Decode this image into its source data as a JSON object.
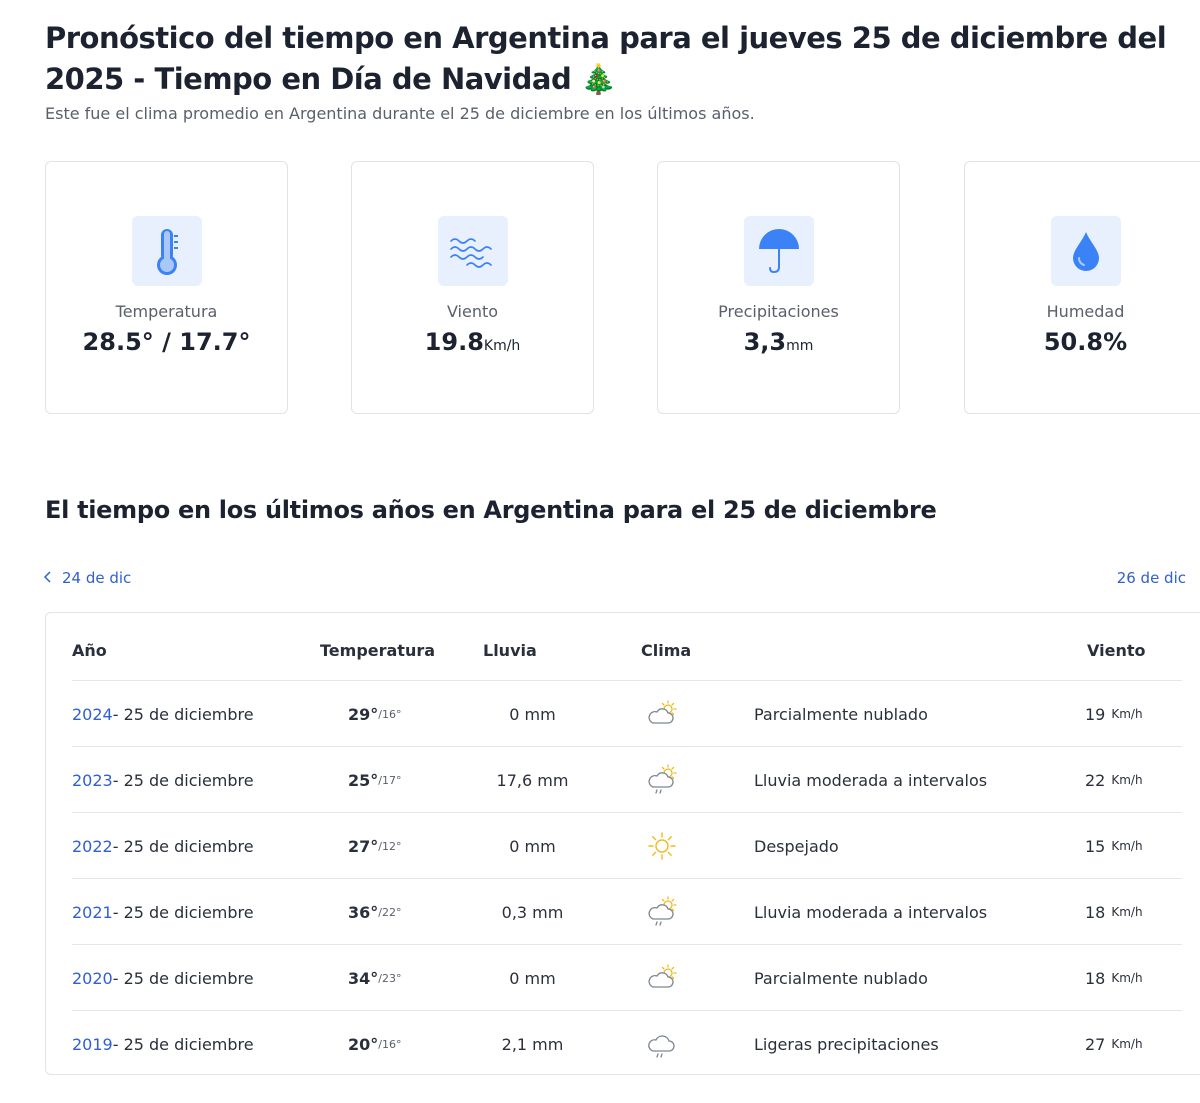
{
  "header": {
    "title": "Pronóstico del tiempo en Argentina para el jueves 25 de diciembre del 2025 - Tiempo en Día de Navidad 🎄",
    "subtitle": "Este fue el clima promedio en Argentina durante el 25 de diciembre en los últimos años."
  },
  "cards": [
    {
      "label": "Temperatura",
      "value": "28.5° / 17.7°",
      "unit": "",
      "icon": "thermometer-icon"
    },
    {
      "label": "Viento",
      "value": "19.8",
      "unit": "Km/h",
      "icon": "wind-icon"
    },
    {
      "label": "Precipitaciones",
      "value": "3,3",
      "unit": "mm",
      "icon": "umbrella-icon"
    },
    {
      "label": "Humedad",
      "value": "50.8%",
      "unit": "",
      "icon": "drop-icon"
    }
  ],
  "history": {
    "title": "El tiempo en los últimos años en Argentina para el 25 de diciembre",
    "prev": "24 de dic",
    "next": "26 de dic",
    "columns": {
      "year": "Año",
      "temp": "Temperatura",
      "rain": "Lluvia",
      "weather": "Clima",
      "wind": "Viento"
    },
    "wind_unit": "Km/h",
    "rows": [
      {
        "year": "2024",
        "date": " - 25 de diciembre",
        "hi": "29°",
        "lo": "/16°",
        "rain": "0 mm",
        "icon": "partly-cloudy",
        "desc": "Parcialmente nublado",
        "wind": "19"
      },
      {
        "year": "2023",
        "date": " - 25 de diciembre",
        "hi": "25°",
        "lo": "/17°",
        "rain": "17,6 mm",
        "icon": "rain-sun",
        "desc": "Lluvia moderada a intervalos",
        "wind": "22"
      },
      {
        "year": "2022",
        "date": " - 25 de diciembre",
        "hi": "27°",
        "lo": "/12°",
        "rain": "0 mm",
        "icon": "sun",
        "desc": "Despejado",
        "wind": "15"
      },
      {
        "year": "2021",
        "date": " - 25 de diciembre",
        "hi": "36°",
        "lo": "/22°",
        "rain": "0,3 mm",
        "icon": "rain-sun",
        "desc": "Lluvia moderada a intervalos",
        "wind": "18"
      },
      {
        "year": "2020",
        "date": " - 25 de diciembre",
        "hi": "34°",
        "lo": "/23°",
        "rain": "0 mm",
        "icon": "partly-cloudy",
        "desc": "Parcialmente nublado",
        "wind": "18"
      },
      {
        "year": "2019",
        "date": " - 25 de diciembre",
        "hi": "20°",
        "lo": "/16°",
        "rain": "2,1 mm",
        "icon": "rain",
        "desc": "Ligeras precipitaciones",
        "wind": "27"
      }
    ]
  },
  "colors": {
    "accent": "#2f5fd0",
    "icon_blue": "#3b82f6",
    "icon_bg": "#e7f0fc",
    "sun": "#f6b91c",
    "cloud": "#7c8694"
  }
}
